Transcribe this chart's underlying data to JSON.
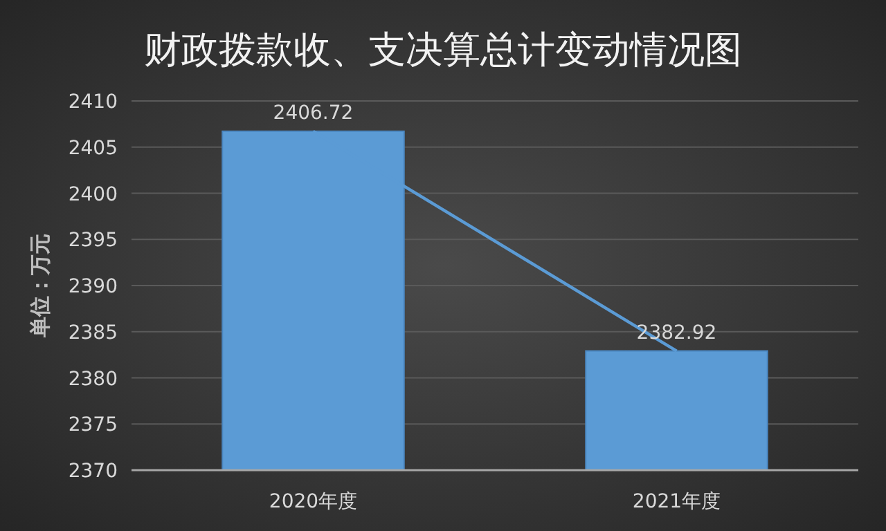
{
  "chart_data": {
    "type": "bar",
    "title": "财政拨款收、支决算总计变动情况图",
    "ylabel": "单位：万元",
    "categories": [
      "2020年度",
      "2021年度"
    ],
    "series": [
      {
        "color": "#5b9bd5",
        "values": [
          2406.72,
          2382.92
        ],
        "value_labels": [
          "2406.72",
          "2382.92"
        ]
      },
      {
        "type": "line",
        "color": "#5b9bd5",
        "values": [
          2406.72,
          2382.92
        ]
      }
    ],
    "ylim": [
      2370,
      2410
    ],
    "yticks": [
      2370,
      2375,
      2380,
      2385,
      2390,
      2395,
      2400,
      2405,
      2410
    ],
    "grid": "y",
    "marker": "none"
  }
}
